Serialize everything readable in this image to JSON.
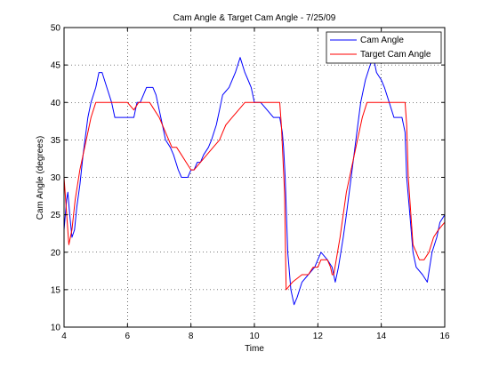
{
  "chart_data": {
    "type": "line",
    "title": "Cam Angle & Target Cam Angle - 7/25/09",
    "xlabel": "Time",
    "ylabel": "Cam Angle (degrees)",
    "xlim": [
      4,
      16
    ],
    "ylim": [
      10,
      50
    ],
    "xticks": [
      4,
      6,
      8,
      10,
      12,
      14,
      16
    ],
    "yticks": [
      10,
      15,
      20,
      25,
      30,
      35,
      40,
      45,
      50
    ],
    "grid": true,
    "legend_position": "top-right",
    "series": [
      {
        "name": "Cam Angle",
        "color": "#0000ff",
        "x": [
          4.0,
          4.08,
          4.12,
          4.18,
          4.25,
          4.33,
          4.4,
          4.5,
          4.6,
          4.75,
          4.85,
          5.0,
          5.1,
          5.2,
          5.35,
          5.5,
          5.6,
          5.7,
          5.8,
          6.0,
          6.2,
          6.3,
          6.4,
          6.5,
          6.6,
          6.7,
          6.8,
          6.9,
          7.0,
          7.1,
          7.2,
          7.35,
          7.45,
          7.6,
          7.7,
          7.8,
          7.9,
          8.0,
          8.1,
          8.2,
          8.3,
          8.4,
          8.55,
          8.65,
          8.8,
          8.9,
          9.0,
          9.2,
          9.4,
          9.55,
          9.7,
          9.8,
          9.9,
          10.0,
          10.1,
          10.2,
          10.4,
          10.6,
          10.8,
          10.88,
          10.92,
          10.97,
          11.05,
          11.15,
          11.25,
          11.35,
          11.5,
          11.7,
          11.9,
          12.0,
          12.1,
          12.3,
          12.45,
          12.55,
          12.65,
          12.8,
          12.9,
          13.05,
          13.2,
          13.35,
          13.5,
          13.65,
          13.75,
          13.85,
          14.0,
          14.1,
          14.25,
          14.4,
          14.55,
          14.65,
          14.75,
          14.8,
          14.9,
          15.0,
          15.1,
          15.3,
          15.45,
          15.6,
          15.75,
          15.85,
          16.0
        ],
        "y": [
          23,
          27,
          28,
          25,
          22,
          23,
          26,
          29,
          33,
          38,
          40,
          42,
          44,
          44,
          42,
          40,
          38,
          38,
          38,
          38,
          38,
          40,
          40,
          41,
          42,
          42,
          42,
          41,
          39,
          37,
          35,
          34,
          33,
          31,
          30,
          30,
          30,
          31,
          31,
          32,
          32,
          33,
          34,
          35,
          37,
          39,
          41,
          42,
          44,
          46,
          44,
          43,
          42,
          40,
          40,
          40,
          39,
          38,
          38,
          36,
          34,
          30,
          20,
          15,
          13,
          14,
          16,
          17,
          18,
          19,
          20,
          19,
          18,
          16,
          18,
          22,
          25,
          30,
          35,
          40,
          43,
          45,
          46,
          44,
          43,
          42,
          40,
          38,
          38,
          38,
          36,
          30,
          25,
          20,
          18,
          17,
          16,
          20,
          22,
          24,
          25
        ]
      },
      {
        "name": "Target Cam Angle",
        "color": "#ff0000",
        "x": [
          4.0,
          4.05,
          4.1,
          4.15,
          4.25,
          4.35,
          4.5,
          4.7,
          4.85,
          5.0,
          5.5,
          6.0,
          6.2,
          6.35,
          6.5,
          6.7,
          6.85,
          7.0,
          7.2,
          7.4,
          7.55,
          7.7,
          7.85,
          8.0,
          8.1,
          8.3,
          8.5,
          8.7,
          8.9,
          9.0,
          9.1,
          9.3,
          9.5,
          9.7,
          10.0,
          10.4,
          10.8,
          10.85,
          10.95,
          11.0,
          11.2,
          11.5,
          11.7,
          11.85,
          12.0,
          12.1,
          12.3,
          12.4,
          12.45,
          12.5,
          12.7,
          12.9,
          13.2,
          13.4,
          13.55,
          14.0,
          14.5,
          14.75,
          14.8,
          14.85,
          15.0,
          15.2,
          15.35,
          15.5,
          15.65,
          15.8,
          16.0
        ],
        "y": [
          30,
          27,
          24,
          21,
          23,
          27,
          31,
          35,
          38,
          40,
          40,
          40,
          39,
          40,
          40,
          40,
          39,
          38,
          36,
          34,
          34,
          33,
          32,
          31,
          31,
          32,
          33,
          34,
          35,
          36,
          37,
          38,
          39,
          40,
          40,
          40,
          40,
          37,
          28,
          15,
          16,
          17,
          17,
          18,
          18,
          19,
          19,
          18,
          17,
          17,
          22,
          28,
          34,
          38,
          40,
          40,
          40,
          40,
          37,
          30,
          21,
          19,
          19,
          20,
          22,
          23,
          24
        ]
      }
    ]
  }
}
